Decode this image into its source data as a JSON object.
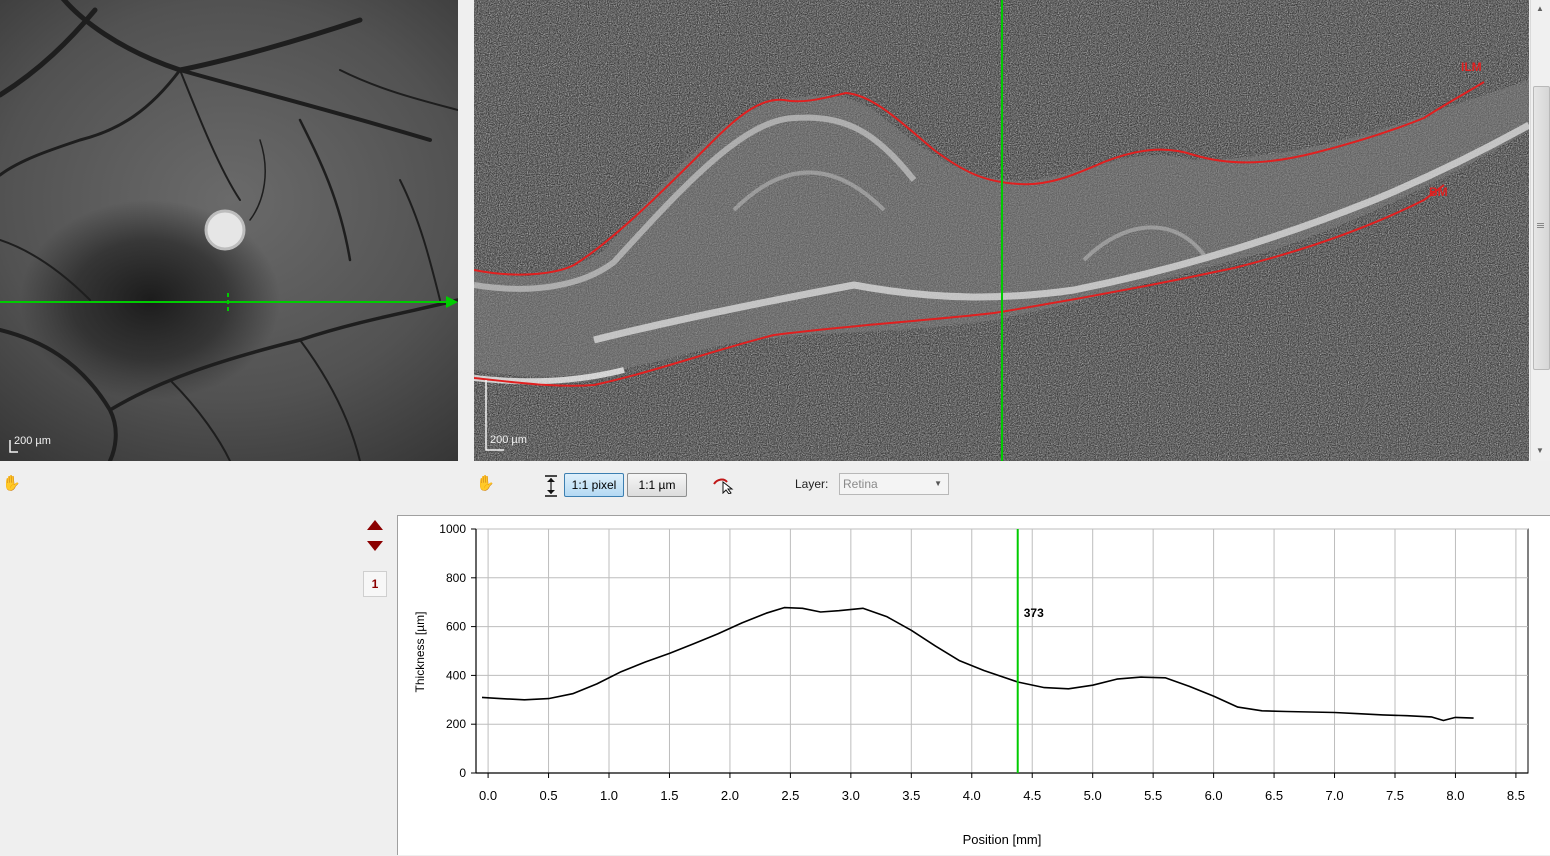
{
  "fundus_view": {
    "scale_bar_label": "200 µm"
  },
  "bscan_view": {
    "scale_bar_label": "200 µm",
    "layer_labels": {
      "top": "ILM",
      "bottom": "BM"
    }
  },
  "toolbar": {
    "hand_tool_icon": "hand-icon",
    "fit_icon": "fit-vertical-icon",
    "pixel_button": "1:1 pixel",
    "um_button": "1:1 µm",
    "cursor_icon": "cursor-tool-icon",
    "layer_label": "Layer:",
    "layer_value": "Retina"
  },
  "side_nav": {
    "up_icon": "arrow-up-icon",
    "down_icon": "arrow-down-icon",
    "page": "1"
  },
  "colors": {
    "marker_green": "#00cc00",
    "segmentation_red": "#e02020",
    "nav_red": "#8b0000",
    "button_active": "#b4d9f3"
  },
  "chart_data": {
    "type": "line",
    "xlabel": "Position [mm]",
    "ylabel": "Thickness [µm]",
    "xlim": [
      -0.1,
      8.6
    ],
    "ylim": [
      0,
      1000
    ],
    "x_ticks": [
      "0.0",
      "0.5",
      "1.0",
      "1.5",
      "2.0",
      "2.5",
      "3.0",
      "3.5",
      "4.0",
      "4.5",
      "5.0",
      "5.5",
      "6.0",
      "6.5",
      "7.0",
      "7.5",
      "8.0",
      "8.5"
    ],
    "y_ticks": [
      "0",
      "200",
      "400",
      "600",
      "800",
      "1000"
    ],
    "grid": true,
    "cursor": {
      "x": 4.38,
      "label": "373"
    },
    "series": [
      {
        "x": [
          -0.05,
          0.1,
          0.3,
          0.5,
          0.7,
          0.9,
          1.1,
          1.3,
          1.5,
          1.7,
          1.9,
          2.1,
          2.3,
          2.45,
          2.6,
          2.75,
          2.9,
          3.1,
          3.3,
          3.5,
          3.7,
          3.9,
          4.1,
          4.38,
          4.6,
          4.8,
          5.0,
          5.2,
          5.4,
          5.6,
          5.8,
          6.0,
          6.2,
          6.4,
          6.6,
          6.8,
          7.0,
          7.2,
          7.4,
          7.6,
          7.8,
          7.9,
          8.0,
          8.15
        ],
        "y": [
          310,
          305,
          300,
          305,
          325,
          365,
          415,
          455,
          490,
          530,
          570,
          615,
          655,
          678,
          675,
          660,
          665,
          675,
          640,
          585,
          520,
          460,
          420,
          373,
          350,
          345,
          360,
          385,
          393,
          390,
          355,
          315,
          270,
          255,
          252,
          250,
          248,
          243,
          238,
          235,
          230,
          215,
          228,
          225
        ]
      }
    ]
  }
}
